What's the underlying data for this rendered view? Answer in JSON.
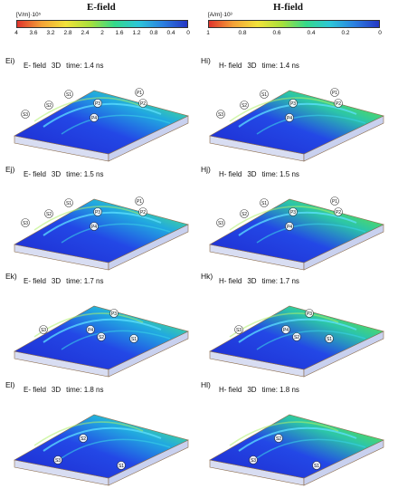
{
  "columns": {
    "e": {
      "title": "E-field",
      "colorbar": {
        "unit": "[V/m]·10⁵",
        "ticks": [
          "4",
          "3.6",
          "3.2",
          "2.8",
          "2.4",
          "2",
          "1.6",
          "1.2",
          "0.8",
          "0.4",
          "0"
        ],
        "gradient": [
          "#e0342c",
          "#f4a238",
          "#f3e23a",
          "#a8e03c",
          "#35d98a",
          "#2cc6d9",
          "#2b7fe0",
          "#2637c4"
        ]
      }
    },
    "h": {
      "title": "H-field",
      "colorbar": {
        "unit": "[A/m]·10³",
        "ticks": [
          "1",
          "0.8",
          "0.6",
          "0.4",
          "0.2",
          "0"
        ],
        "gradient": [
          "#e0342c",
          "#f4a238",
          "#f3e23a",
          "#a8e03c",
          "#35d98a",
          "#2cc6d9",
          "#2b7fe0",
          "#2637c4"
        ]
      }
    }
  },
  "panels": {
    "ei": {
      "label": "Ei)",
      "field": "E- field",
      "dim": "3D",
      "time": "time: 1.4 ns",
      "markers": [
        "P1",
        "P2",
        "P3",
        "P4",
        "S1",
        "S2",
        "S3"
      ]
    },
    "hi": {
      "label": "Hi)",
      "field": "H- field",
      "dim": "3D",
      "time": "time: 1.4 ns",
      "markers": [
        "P1",
        "P2",
        "P3",
        "P4",
        "S1",
        "S2",
        "S3"
      ]
    },
    "ej": {
      "label": "Ej)",
      "field": "E- field",
      "dim": "3D",
      "time": "time: 1.5 ns",
      "markers": [
        "P1",
        "P2",
        "P3",
        "P4",
        "S1",
        "S2",
        "S3"
      ]
    },
    "hj": {
      "label": "Hj)",
      "field": "H- field",
      "dim": "3D",
      "time": "time: 1.5 ns",
      "markers": [
        "P1",
        "P2",
        "P3",
        "P4",
        "S1",
        "S2",
        "S3"
      ]
    },
    "ek": {
      "label": "Ek)",
      "field": "E- field",
      "dim": "3D",
      "time": "time: 1.7 ns",
      "markers": [
        "P3",
        "P4",
        "S1",
        "S2",
        "S3"
      ]
    },
    "hk": {
      "label": "Hk)",
      "field": "H- field",
      "dim": "3D",
      "time": "time: 1.7 ns",
      "markers": [
        "P3",
        "P4",
        "S1",
        "S2",
        "S3"
      ]
    },
    "el": {
      "label": "El)",
      "field": "E- field",
      "dim": "3D",
      "time": "time: 1.8 ns",
      "markers": [
        "S1",
        "S2",
        "S3"
      ]
    },
    "hl": {
      "label": "Hl)",
      "field": "H- field",
      "dim": "3D",
      "time": "time: 1.8 ns",
      "markers": [
        "S1",
        "S2",
        "S3"
      ]
    }
  }
}
